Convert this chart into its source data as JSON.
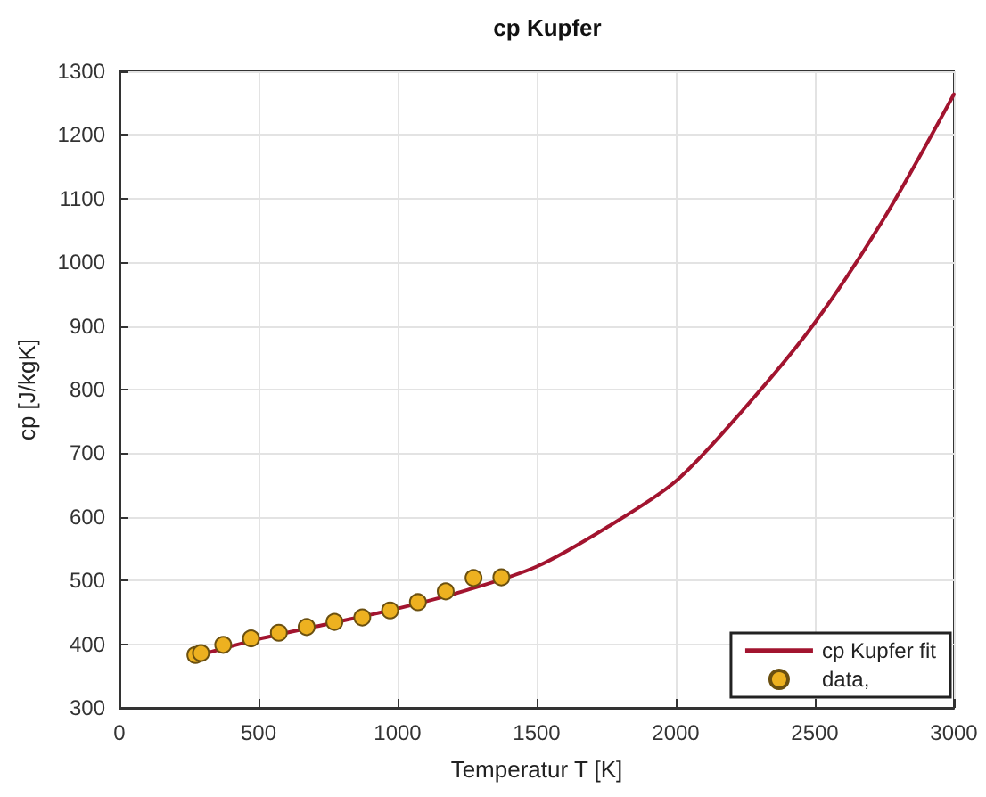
{
  "chart_data": {
    "type": "line",
    "title": "cp Kupfer",
    "xlabel": "Temperatur T [K]",
    "ylabel": "cp [J/kgK]",
    "xlim": [
      0,
      3000
    ],
    "xticks": [
      0,
      500,
      1000,
      1500,
      2000,
      2500,
      3000
    ],
    "ylim": [
      300,
      1300
    ],
    "yticks": [
      300,
      400,
      500,
      600,
      700,
      800,
      900,
      1000,
      1100,
      1200,
      1300
    ],
    "grid": true,
    "legend": "bottom right",
    "series": [
      {
        "name": "cp Kupfer fit",
        "type": "line",
        "color": "#a2142f",
        "marker": "none",
        "line_style": "solid",
        "x": [
          273,
          500,
          750,
          1000,
          1250,
          1500,
          1750,
          2000,
          2250,
          2500,
          2750,
          3000
        ],
        "values": [
          381,
          408,
          432,
          456,
          485,
          522,
          583,
          656,
          772,
          905,
          1070,
          1264
        ]
      },
      {
        "name": "data,",
        "type": "scatter",
        "color": "#edb120",
        "marker": "circle",
        "x": [
          273,
          293,
          373,
          473,
          573,
          673,
          773,
          873,
          973,
          1073,
          1173,
          1273,
          1373
        ],
        "values": [
          383,
          386,
          399,
          409,
          418,
          427,
          435,
          442,
          453,
          466,
          483,
          504,
          505
        ]
      }
    ]
  }
}
